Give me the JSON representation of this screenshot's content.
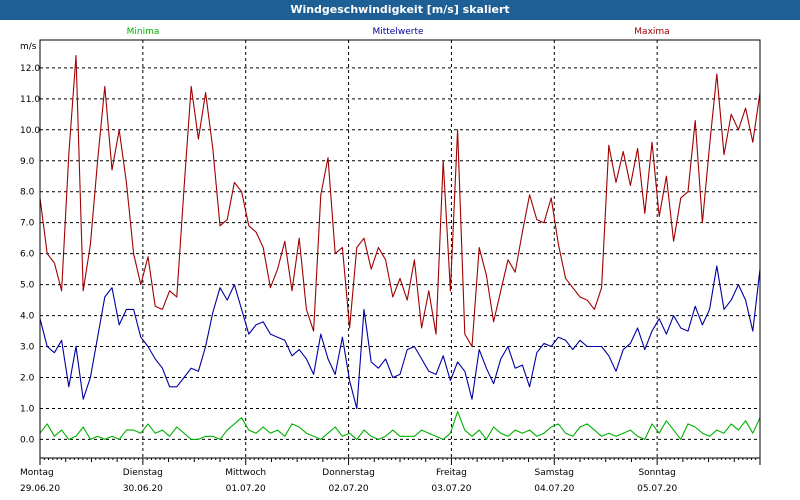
{
  "window": {
    "title": "Windgeschwindigkeit [m/s] skaliert"
  },
  "chart_data": {
    "type": "line",
    "unit": "m/s",
    "ylim": [
      -0.6,
      12.9
    ],
    "yticks": [
      "0.0",
      "1.0",
      "2.0",
      "3.0",
      "4.0",
      "5.0",
      "6.0",
      "7.0",
      "8.0",
      "9.0",
      "10.0",
      "11.0",
      "12.0"
    ],
    "grid": true,
    "legend_position": "top",
    "days": [
      {
        "name": "Montag",
        "date": "29.06.20"
      },
      {
        "name": "Dienstag",
        "date": "30.06.20"
      },
      {
        "name": "Mittwoch",
        "date": "01.07.20"
      },
      {
        "name": "Donnerstag",
        "date": "02.07.20"
      },
      {
        "name": "Freitag",
        "date": "03.07.20"
      },
      {
        "name": "Samstag",
        "date": "04.07.20"
      },
      {
        "name": "Sonntag",
        "date": "05.07.20"
      }
    ],
    "series": [
      {
        "name": "Minima",
        "color": "#00b000",
        "values": [
          0.2,
          0.5,
          0.1,
          0.3,
          0.0,
          0.1,
          0.4,
          0.0,
          0.1,
          0.0,
          0.1,
          0.0,
          0.3,
          0.3,
          0.2,
          0.5,
          0.2,
          0.3,
          0.1,
          0.4,
          0.2,
          0.0,
          0.0,
          0.1,
          0.1,
          0.0,
          0.3,
          0.5,
          0.7,
          0.3,
          0.2,
          0.4,
          0.2,
          0.3,
          0.1,
          0.5,
          0.4,
          0.2,
          0.1,
          0.0,
          0.2,
          0.4,
          0.1,
          0.2,
          0.0,
          0.3,
          0.1,
          0.0,
          0.1,
          0.3,
          0.1,
          0.1,
          0.1,
          0.3,
          0.2,
          0.1,
          0.0,
          0.2,
          0.9,
          0.3,
          0.1,
          0.3,
          0.0,
          0.4,
          0.2,
          0.1,
          0.3,
          0.2,
          0.3,
          0.1,
          0.2,
          0.4,
          0.5,
          0.2,
          0.1,
          0.4,
          0.5,
          0.3,
          0.1,
          0.2,
          0.1,
          0.2,
          0.3,
          0.1,
          0.0,
          0.5,
          0.2,
          0.6,
          0.3,
          0.0,
          0.5,
          0.4,
          0.2,
          0.1,
          0.3,
          0.2,
          0.5,
          0.3,
          0.6,
          0.2,
          0.7
        ]
      },
      {
        "name": "Mittelwerte",
        "color": "#0000a0",
        "values": [
          3.9,
          3.0,
          2.8,
          3.2,
          1.7,
          3.0,
          1.3,
          2.0,
          3.3,
          4.6,
          4.9,
          3.7,
          4.2,
          4.2,
          3.3,
          3.0,
          2.6,
          2.3,
          1.7,
          1.7,
          2.0,
          2.3,
          2.2,
          3.0,
          4.1,
          4.9,
          4.5,
          5.0,
          4.2,
          3.4,
          3.7,
          3.8,
          3.4,
          3.3,
          3.2,
          2.7,
          2.9,
          2.6,
          2.1,
          3.4,
          2.6,
          2.1,
          3.3,
          1.9,
          1.0,
          4.2,
          2.5,
          2.3,
          2.6,
          2.0,
          2.1,
          2.9,
          3.0,
          2.6,
          2.2,
          2.1,
          2.7,
          1.9,
          2.5,
          2.2,
          1.3,
          2.9,
          2.3,
          1.8,
          2.6,
          3.0,
          2.3,
          2.4,
          1.7,
          2.8,
          3.1,
          3.0,
          3.3,
          3.2,
          2.9,
          3.2,
          3.0,
          3.0,
          3.0,
          2.7,
          2.2,
          2.9,
          3.1,
          3.6,
          2.9,
          3.5,
          3.9,
          3.4,
          4.0,
          3.6,
          3.5,
          4.3,
          3.7,
          4.2,
          5.6,
          4.2,
          4.5,
          5.0,
          4.5,
          3.5,
          5.5
        ]
      },
      {
        "name": "Maxima",
        "color": "#a00000",
        "values": [
          7.8,
          6.0,
          5.7,
          4.8,
          9.2,
          12.4,
          4.8,
          6.3,
          9.0,
          11.4,
          8.7,
          10.0,
          8.3,
          6.0,
          5.0,
          5.9,
          4.3,
          4.2,
          4.8,
          4.6,
          8.1,
          11.4,
          9.7,
          11.2,
          9.4,
          6.9,
          7.1,
          8.3,
          8.0,
          6.9,
          6.7,
          6.2,
          4.9,
          5.5,
          6.4,
          4.8,
          6.5,
          4.2,
          3.5,
          7.9,
          9.1,
          6.0,
          6.2,
          3.6,
          6.2,
          6.5,
          5.5,
          6.2,
          5.8,
          4.6,
          5.2,
          4.5,
          5.8,
          3.6,
          4.8,
          3.4,
          9.0,
          4.8,
          10.0,
          3.4,
          3.0,
          6.2,
          5.3,
          3.8,
          4.8,
          5.8,
          5.4,
          6.7,
          7.9,
          7.1,
          7.0,
          7.8,
          6.3,
          5.2,
          4.9,
          4.6,
          4.5,
          4.2,
          4.9,
          9.5,
          8.3,
          9.3,
          8.2,
          9.4,
          7.3,
          9.6,
          7.2,
          8.5,
          6.4,
          7.8,
          8.0,
          10.3,
          7.0,
          9.5,
          11.8,
          9.2,
          10.5,
          10.0,
          10.7,
          9.6,
          11.2
        ]
      }
    ]
  }
}
